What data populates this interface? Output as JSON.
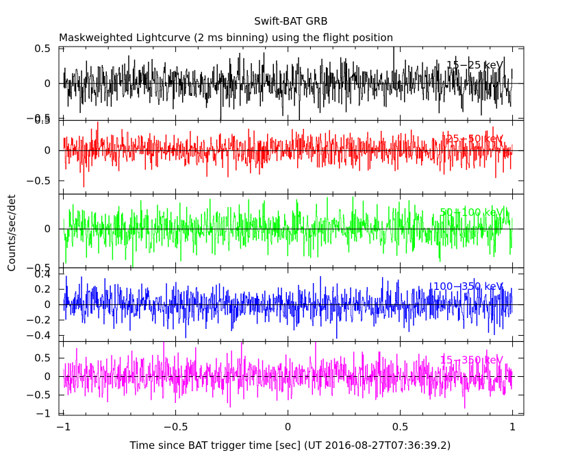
{
  "chart_data": {
    "type": "line",
    "title": "Swift-BAT GRB",
    "subtitle": "Maskweighted Lightcurve (2 ms binning) using the flight position",
    "xlabel": "Time since BAT trigger time [sec] (UT 2016-08-27T07:36:39.2)",
    "ylabel": "Counts/sec/det",
    "xlim": [
      -1.02,
      1.05
    ],
    "x_ticks": [
      -1,
      -0.5,
      0,
      0.5,
      1
    ],
    "x_tick_labels": [
      "−1",
      "−0.5",
      "0",
      "0.5",
      "1"
    ],
    "bin_seconds": 0.002,
    "series_x_range": [
      -1.0,
      1.0
    ],
    "panels": [
      {
        "name": "15−25 keV",
        "color": "#000000",
        "ylim": [
          -0.53,
          0.53
        ],
        "amplitude": 0.16,
        "y_ticks": [
          0.5,
          0,
          -0.5
        ],
        "y_tick_labels": [
          "0.5",
          "0",
          "−0.5"
        ]
      },
      {
        "name": "25−50 keV",
        "color": "#ff0000",
        "ylim": [
          -0.72,
          0.5
        ],
        "amplitude": 0.15,
        "y_ticks": [
          0.5,
          0,
          -0.5
        ],
        "y_tick_labels": [
          "0.5",
          "0",
          "−0.5"
        ]
      },
      {
        "name": "50−100 keV",
        "color": "#00ff00",
        "ylim": [
          -0.5,
          0.45
        ],
        "amplitude": 0.14,
        "y_ticks": [
          0,
          -0.5
        ],
        "y_tick_labels": [
          "0",
          "−0.5"
        ]
      },
      {
        "name": "100−350 keV",
        "color": "#0000ff",
        "ylim": [
          -0.48,
          0.48
        ],
        "amplitude": 0.13,
        "y_ticks": [
          0.4,
          0.2,
          0,
          -0.2,
          -0.4
        ],
        "y_tick_labels": [
          "0.4",
          "0.2",
          "0",
          "−0.2",
          "−0.4"
        ]
      },
      {
        "name": "15−350 keV",
        "color": "#ff00ff",
        "ylim": [
          -1.05,
          0.95
        ],
        "amplitude": 0.28,
        "y_ticks": [
          0.5,
          0,
          -0.5,
          -1
        ],
        "y_tick_labels": [
          "0.5",
          "0",
          "−0.5",
          "−1"
        ]
      }
    ]
  }
}
